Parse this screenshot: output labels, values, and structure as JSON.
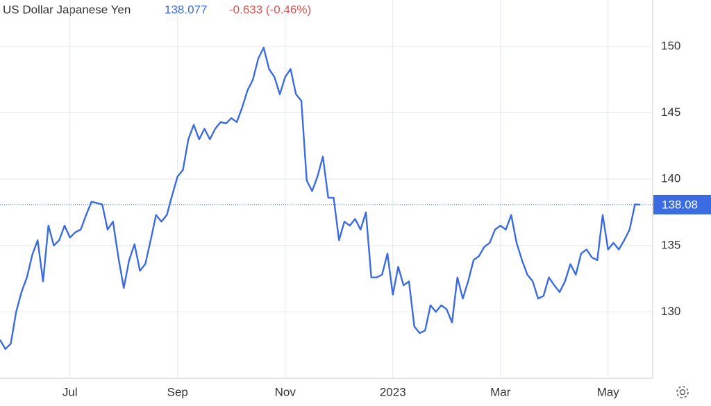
{
  "chart_data": {
    "type": "line",
    "title": "US Dollar Japanese Yen",
    "price": "138.077",
    "change": "-0.633 (-0.46%)",
    "categories": [
      null,
      null,
      null,
      null,
      null,
      null,
      null,
      null,
      null,
      null,
      null,
      null,
      null,
      "Jul",
      null,
      null,
      null,
      null,
      null,
      null,
      null,
      null,
      null,
      null,
      null,
      null,
      null,
      null,
      null,
      null,
      null,
      null,
      null,
      "Sep",
      null,
      null,
      null,
      null,
      null,
      null,
      null,
      null,
      null,
      null,
      null,
      null,
      null,
      null,
      null,
      null,
      null,
      null,
      null,
      "Nov",
      null,
      null,
      null,
      null,
      null,
      null,
      null,
      null,
      null,
      null,
      null,
      null,
      null,
      null,
      null,
      null,
      null,
      null,
      null,
      "2023",
      null,
      null,
      null,
      null,
      null,
      null,
      null,
      null,
      null,
      null,
      null,
      null,
      null,
      null,
      null,
      null,
      null,
      null,
      null,
      "Mar",
      null,
      null,
      null,
      null,
      null,
      null,
      null,
      null,
      null,
      null,
      null,
      null,
      null,
      null,
      null,
      null,
      null,
      null,
      null,
      "May",
      null,
      null,
      null,
      null,
      null,
      null
    ],
    "series": [
      {
        "name": "USDJPY",
        "color": "#3b6be0",
        "values": [
          127.9,
          127.2,
          127.6,
          130.0,
          131.5,
          132.6,
          134.3,
          135.4,
          132.3,
          136.5,
          135.0,
          135.4,
          136.5,
          135.6,
          136.0,
          136.2,
          137.3,
          138.3,
          138.2,
          138.1,
          136.2,
          136.8,
          134.1,
          131.8,
          133.9,
          135.1,
          133.1,
          133.6,
          135.4,
          137.3,
          136.8,
          137.3,
          138.8,
          140.2,
          140.7,
          143.0,
          144.1,
          143.0,
          143.8,
          143.0,
          143.8,
          144.3,
          144.2,
          144.6,
          144.3,
          145.4,
          146.7,
          147.5,
          149.1,
          149.9,
          148.3,
          147.7,
          146.4,
          147.7,
          148.3,
          146.4,
          145.9,
          139.9,
          139.1,
          140.2,
          141.7,
          138.6,
          138.6,
          135.4,
          136.8,
          136.5,
          137.0,
          136.2,
          137.5,
          132.6,
          132.6,
          132.8,
          134.4,
          131.3,
          133.4,
          132.0,
          132.3,
          128.9,
          128.4,
          128.6,
          130.5,
          130.0,
          130.5,
          130.2,
          129.2,
          132.6,
          131.0,
          132.3,
          133.9,
          134.2,
          134.9,
          135.2,
          136.2,
          136.5,
          136.2,
          137.3,
          135.2,
          133.9,
          132.8,
          132.3,
          131.0,
          131.2,
          132.6,
          132.0,
          131.5,
          132.3,
          133.6,
          132.8,
          134.4,
          134.7,
          134.1,
          133.9,
          137.3,
          134.7,
          135.2,
          134.7,
          135.4,
          136.2,
          138.1,
          138.077
        ]
      }
    ],
    "last_price": {
      "value": 138.077,
      "label": "138.08"
    },
    "ylim": [
      125,
      153.5
    ],
    "yticks": [
      130,
      135,
      140,
      145,
      150
    ],
    "grid": true
  }
}
